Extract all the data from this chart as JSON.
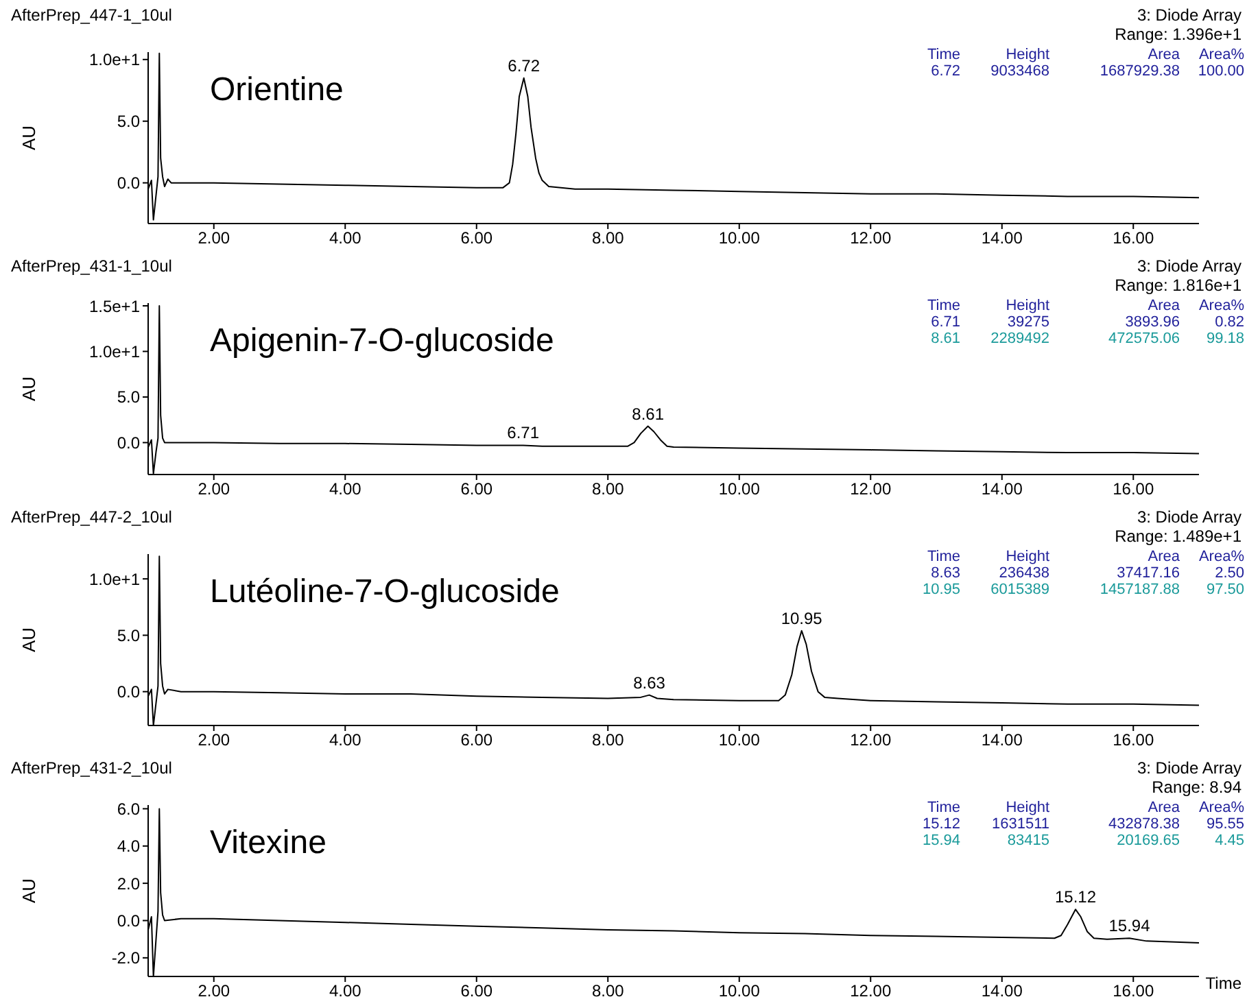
{
  "chart_data": [
    {
      "type": "line",
      "title": "AfterPrep_447-1_10ul",
      "subtitle": "3: Diode Array",
      "ylabel": "AU",
      "annotations": [
        "Orientine",
        "Range: 1.396e+1",
        "Time Height Area Area%",
        "6.72 9033468 1687929.38 100.00",
        {
          "text": "6.72",
          "x": 6.72,
          "y": 8.5
        }
      ],
      "xlim": [
        1,
        17
      ],
      "xticks": [
        {
          "value": 2,
          "label": "2.00"
        },
        {
          "value": 4,
          "label": "4.00"
        },
        {
          "value": 6,
          "label": "6.00"
        },
        {
          "value": 8,
          "label": "8.00"
        },
        {
          "value": 10,
          "label": "10.00"
        },
        {
          "value": 12,
          "label": "12.00"
        },
        {
          "value": 14,
          "label": "14.00"
        },
        {
          "value": 16,
          "label": "16.00"
        }
      ],
      "ylim": [
        -3.3,
        10.6
      ],
      "yticks": [
        {
          "value": 0,
          "label": "0.0"
        },
        {
          "value": 5,
          "label": "5.0"
        },
        {
          "value": 10,
          "label": "1.0e+1"
        }
      ],
      "x": [
        1.0,
        1.05,
        1.08,
        1.12,
        1.15,
        1.17,
        1.19,
        1.22,
        1.25,
        1.3,
        1.35,
        1.5,
        2,
        3,
        4,
        5,
        6,
        6.4,
        6.5,
        6.55,
        6.6,
        6.65,
        6.72,
        6.78,
        6.83,
        6.9,
        6.95,
        7.0,
        7.1,
        7.5,
        8,
        9,
        10,
        11,
        12,
        13,
        14,
        15,
        16,
        17
      ],
      "series": [
        {
          "color": "#000000",
          "values": [
            -0.5,
            0.2,
            -3.0,
            -1.0,
            0.5,
            10.5,
            2.0,
            0.5,
            -0.3,
            0.3,
            0.0,
            0.0,
            0.0,
            -0.1,
            -0.2,
            -0.3,
            -0.4,
            -0.4,
            0.0,
            1.5,
            4.0,
            7.0,
            8.5,
            7.0,
            4.5,
            2.0,
            0.8,
            0.2,
            -0.3,
            -0.5,
            -0.5,
            -0.6,
            -0.7,
            -0.8,
            -0.9,
            -0.9,
            -1.0,
            -1.1,
            -1.1,
            -1.2
          ]
        }
      ]
    },
    {
      "type": "line",
      "title": "AfterPrep_431-1_10ul",
      "subtitle": "3: Diode Array",
      "ylabel": "AU",
      "annotations": [
        "Apigenin-7-O-glucoside",
        "Range: 1.816e+1",
        "Time Height Area Area%",
        "6.71 39275 3893.96 0.82",
        "8.61 2289492 472575.06 99.18",
        {
          "text": "6.71",
          "x": 6.71,
          "y": -0.3
        },
        {
          "text": "8.61",
          "x": 8.61,
          "y": 1.8
        }
      ],
      "xlim": [
        1,
        17
      ],
      "xticks": [
        {
          "value": 2,
          "label": "2.00"
        },
        {
          "value": 4,
          "label": "4.00"
        },
        {
          "value": 6,
          "label": "6.00"
        },
        {
          "value": 8,
          "label": "8.00"
        },
        {
          "value": 10,
          "label": "10.00"
        },
        {
          "value": 12,
          "label": "12.00"
        },
        {
          "value": 14,
          "label": "14.00"
        },
        {
          "value": 16,
          "label": "16.00"
        }
      ],
      "ylim": [
        -3.5,
        15.3
      ],
      "yticks": [
        {
          "value": 0,
          "label": "0.0"
        },
        {
          "value": 5,
          "label": "5.0"
        },
        {
          "value": 10,
          "label": "1.0e+1"
        },
        {
          "value": 15,
          "label": "1.5e+1"
        }
      ],
      "x": [
        1.0,
        1.05,
        1.08,
        1.12,
        1.15,
        1.17,
        1.19,
        1.22,
        1.25,
        1.5,
        2,
        3,
        4,
        5,
        6,
        6.71,
        7,
        8,
        8.3,
        8.4,
        8.5,
        8.61,
        8.7,
        8.8,
        8.9,
        9,
        10,
        11,
        12,
        13,
        14,
        15,
        16,
        17
      ],
      "series": [
        {
          "color": "#000000",
          "values": [
            -0.5,
            0.3,
            -3.4,
            -1.0,
            0.5,
            15.0,
            3.0,
            0.5,
            0.0,
            0.0,
            0.0,
            -0.1,
            -0.1,
            -0.2,
            -0.3,
            -0.3,
            -0.4,
            -0.4,
            -0.4,
            0.0,
            1.0,
            1.8,
            1.2,
            0.3,
            -0.4,
            -0.5,
            -0.6,
            -0.7,
            -0.8,
            -0.9,
            -1.0,
            -1.1,
            -1.1,
            -1.2
          ]
        }
      ]
    },
    {
      "type": "line",
      "title": "AfterPrep_447-2_10ul",
      "subtitle": "3: Diode Array",
      "ylabel": "AU",
      "annotations": [
        "Lutéoline-7-O-glucoside",
        "Range: 1.489e+1",
        "Time Height Area Area%",
        "8.63 236438 37417.16 2.50",
        "10.95 6015389 1457187.88 97.50",
        {
          "text": "8.63",
          "x": 8.63,
          "y": -0.3
        },
        {
          "text": "10.95",
          "x": 10.95,
          "y": 5.4
        }
      ],
      "xlim": [
        1,
        17
      ],
      "xticks": [
        {
          "value": 2,
          "label": "2.00"
        },
        {
          "value": 4,
          "label": "4.00"
        },
        {
          "value": 6,
          "label": "6.00"
        },
        {
          "value": 8,
          "label": "8.00"
        },
        {
          "value": 10,
          "label": "10.00"
        },
        {
          "value": 12,
          "label": "12.00"
        },
        {
          "value": 14,
          "label": "14.00"
        },
        {
          "value": 16,
          "label": "16.00"
        }
      ],
      "ylim": [
        -3,
        12.2
      ],
      "yticks": [
        {
          "value": 0,
          "label": "0.0"
        },
        {
          "value": 5,
          "label": "5.0"
        },
        {
          "value": 10,
          "label": "1.0e+1"
        }
      ],
      "x": [
        1.0,
        1.05,
        1.08,
        1.12,
        1.15,
        1.17,
        1.19,
        1.22,
        1.25,
        1.3,
        1.5,
        2,
        3,
        4,
        5,
        6,
        7,
        8,
        8.5,
        8.63,
        8.75,
        9,
        10,
        10.6,
        10.7,
        10.8,
        10.88,
        10.95,
        11.02,
        11.1,
        11.2,
        11.3,
        11.5,
        12,
        13,
        14,
        15,
        16,
        17
      ],
      "series": [
        {
          "color": "#000000",
          "values": [
            -0.4,
            0.2,
            -3.0,
            -1.0,
            0.5,
            12.0,
            2.5,
            0.5,
            -0.2,
            0.2,
            0.0,
            0.0,
            -0.1,
            -0.2,
            -0.2,
            -0.4,
            -0.5,
            -0.6,
            -0.5,
            -0.3,
            -0.6,
            -0.7,
            -0.8,
            -0.8,
            -0.3,
            1.5,
            4.0,
            5.4,
            4.2,
            1.8,
            0.0,
            -0.5,
            -0.6,
            -0.8,
            -0.9,
            -1.0,
            -1.1,
            -1.1,
            -1.2
          ]
        }
      ]
    },
    {
      "type": "line",
      "title": "AfterPrep_431-2_10ul",
      "subtitle": "3: Diode Array",
      "ylabel": "AU",
      "xlabel": "Time",
      "annotations": [
        "Vitexine",
        "Range: 8.94",
        "Time Height Area Area%",
        "15.12 1631511 432878.38 95.55",
        "15.94 83415 20169.65 4.45",
        {
          "text": "15.12",
          "x": 15.12,
          "y": 0.6
        },
        {
          "text": "15.94",
          "x": 15.94,
          "y": -0.95
        }
      ],
      "xlim": [
        1,
        17
      ],
      "xticks": [
        {
          "value": 2,
          "label": "2.00"
        },
        {
          "value": 4,
          "label": "4.00"
        },
        {
          "value": 6,
          "label": "6.00"
        },
        {
          "value": 8,
          "label": "8.00"
        },
        {
          "value": 10,
          "label": "10.00"
        },
        {
          "value": 12,
          "label": "12.00"
        },
        {
          "value": 14,
          "label": "14.00"
        },
        {
          "value": 16,
          "label": "16.00"
        }
      ],
      "ylim": [
        -3,
        6.2
      ],
      "yticks": [
        {
          "value": -2,
          "label": "-2.0"
        },
        {
          "value": 0,
          "label": "0.0"
        },
        {
          "value": 2,
          "label": "2.0"
        },
        {
          "value": 4,
          "label": "4.0"
        },
        {
          "value": 6,
          "label": "6.0"
        }
      ],
      "x": [
        1.0,
        1.05,
        1.08,
        1.12,
        1.15,
        1.17,
        1.19,
        1.22,
        1.25,
        1.5,
        2,
        3,
        4,
        5,
        6,
        7,
        8,
        9,
        10,
        11,
        12,
        13,
        14,
        14.8,
        14.9,
        15.0,
        15.12,
        15.2,
        15.3,
        15.4,
        15.6,
        15.94,
        16.2,
        17
      ],
      "series": [
        {
          "color": "#000000",
          "values": [
            -0.5,
            0.2,
            -3.0,
            -1.0,
            0.5,
            6.0,
            1.5,
            0.3,
            0.0,
            0.1,
            0.1,
            0.0,
            -0.1,
            -0.2,
            -0.3,
            -0.4,
            -0.5,
            -0.55,
            -0.65,
            -0.7,
            -0.8,
            -0.85,
            -0.9,
            -0.95,
            -0.8,
            -0.2,
            0.6,
            0.2,
            -0.6,
            -0.95,
            -1.0,
            -0.95,
            -1.1,
            -1.2
          ]
        }
      ]
    }
  ]
}
